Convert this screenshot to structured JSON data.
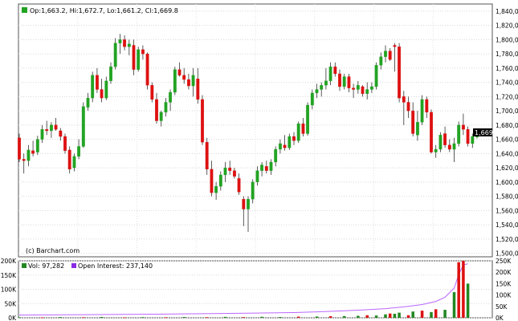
{
  "chart_data": [
    {
      "type": "candlestick",
      "legend": {
        "label": "Op:1,663.2, Hi:1,672.7, Lo:1,661.2, Cl:1,669.8",
        "color": "#22a322"
      },
      "credit": "(c) Barchart.com",
      "last_price_label": "1,669.8",
      "ylim": [
        1495,
        1850
      ],
      "yticks": [
        "1,840,00",
        "1,820,00",
        "1,800,00",
        "1,780,00",
        "1,760,00",
        "1,740,00",
        "1,720,00",
        "1,700,00",
        "1,680,00",
        "1,660,00",
        "1,640,00",
        "1,620,00",
        "1,600,00",
        "1,580,00",
        "1,560,00",
        "1,540,00",
        "1,520,00",
        "1,500,00"
      ],
      "ytick_values": [
        1840,
        1820,
        1800,
        1780,
        1760,
        1740,
        1720,
        1700,
        1680,
        1660,
        1640,
        1620,
        1600,
        1580,
        1560,
        1540,
        1520,
        1500
      ],
      "grid": true,
      "up_color": "#22a322",
      "down_color": "#dd1111",
      "candles": [
        [
          1662,
          1668,
          1628,
          1632
        ],
        [
          1632,
          1640,
          1612,
          1630
        ],
        [
          1630,
          1652,
          1622,
          1645
        ],
        [
          1644,
          1658,
          1636,
          1640
        ],
        [
          1642,
          1665,
          1638,
          1660
        ],
        [
          1660,
          1680,
          1655,
          1674
        ],
        [
          1674,
          1686,
          1666,
          1672
        ],
        [
          1672,
          1684,
          1662,
          1680
        ],
        [
          1680,
          1690,
          1672,
          1674
        ],
        [
          1672,
          1676,
          1658,
          1664
        ],
        [
          1664,
          1668,
          1640,
          1644
        ],
        [
          1645,
          1650,
          1612,
          1618
        ],
        [
          1620,
          1640,
          1615,
          1636
        ],
        [
          1636,
          1660,
          1632,
          1650
        ],
        [
          1650,
          1712,
          1648,
          1706
        ],
        [
          1705,
          1725,
          1700,
          1718
        ],
        [
          1718,
          1755,
          1712,
          1750
        ],
        [
          1750,
          1760,
          1725,
          1730
        ],
        [
          1730,
          1745,
          1712,
          1718
        ],
        [
          1718,
          1748,
          1715,
          1742
        ],
        [
          1742,
          1768,
          1738,
          1762
        ],
        [
          1762,
          1802,
          1758,
          1795
        ],
        [
          1795,
          1808,
          1780,
          1800
        ],
        [
          1800,
          1806,
          1785,
          1790
        ],
        [
          1790,
          1800,
          1778,
          1794
        ],
        [
          1792,
          1800,
          1750,
          1758
        ],
        [
          1758,
          1790,
          1755,
          1786
        ],
        [
          1786,
          1792,
          1772,
          1780
        ],
        [
          1780,
          1782,
          1730,
          1736
        ],
        [
          1736,
          1740,
          1712,
          1716
        ],
        [
          1716,
          1725,
          1682,
          1686
        ],
        [
          1686,
          1700,
          1678,
          1698
        ],
        [
          1698,
          1718,
          1692,
          1712
        ],
        [
          1712,
          1730,
          1700,
          1726
        ],
        [
          1726,
          1762,
          1722,
          1758
        ],
        [
          1758,
          1768,
          1748,
          1750
        ],
        [
          1750,
          1760,
          1738,
          1744
        ],
        [
          1744,
          1752,
          1730,
          1735
        ],
        [
          1735,
          1760,
          1720,
          1750
        ],
        [
          1745,
          1760,
          1710,
          1716
        ],
        [
          1716,
          1722,
          1652,
          1656
        ],
        [
          1656,
          1662,
          1610,
          1618
        ],
        [
          1618,
          1630,
          1580,
          1585
        ],
        [
          1585,
          1600,
          1575,
          1594
        ],
        [
          1594,
          1615,
          1588,
          1610
        ],
        [
          1610,
          1628,
          1600,
          1620
        ],
        [
          1620,
          1630,
          1610,
          1616
        ],
        [
          1616,
          1620,
          1605,
          1608
        ],
        [
          1605,
          1612,
          1582,
          1586
        ],
        [
          1576,
          1580,
          1538,
          1562
        ],
        [
          1562,
          1580,
          1530,
          1576
        ],
        [
          1576,
          1604,
          1570,
          1600
        ],
        [
          1600,
          1622,
          1595,
          1616
        ],
        [
          1616,
          1628,
          1608,
          1624
        ],
        [
          1622,
          1630,
          1612,
          1616
        ],
        [
          1616,
          1632,
          1610,
          1628
        ],
        [
          1628,
          1650,
          1622,
          1646
        ],
        [
          1646,
          1660,
          1640,
          1654
        ],
        [
          1652,
          1666,
          1644,
          1648
        ],
        [
          1648,
          1668,
          1645,
          1664
        ],
        [
          1664,
          1670,
          1652,
          1658
        ],
        [
          1658,
          1685,
          1655,
          1682
        ],
        [
          1682,
          1690,
          1664,
          1668
        ],
        [
          1668,
          1712,
          1665,
          1708
        ],
        [
          1708,
          1730,
          1702,
          1725
        ],
        [
          1725,
          1738,
          1718,
          1730
        ],
        [
          1730,
          1740,
          1720,
          1736
        ],
        [
          1736,
          1760,
          1730,
          1742
        ],
        [
          1742,
          1768,
          1736,
          1762
        ],
        [
          1762,
          1768,
          1748,
          1752
        ],
        [
          1752,
          1758,
          1728,
          1734
        ],
        [
          1734,
          1752,
          1730,
          1748
        ],
        [
          1748,
          1752,
          1726,
          1732
        ],
        [
          1732,
          1738,
          1718,
          1730
        ],
        [
          1730,
          1742,
          1724,
          1736
        ],
        [
          1734,
          1736,
          1720,
          1724
        ],
        [
          1724,
          1740,
          1716,
          1730
        ],
        [
          1730,
          1740,
          1725,
          1734
        ],
        [
          1734,
          1768,
          1730,
          1764
        ],
        [
          1764,
          1782,
          1758,
          1776
        ],
        [
          1776,
          1792,
          1768,
          1784
        ],
        [
          1784,
          1788,
          1770,
          1772
        ],
        [
          1792,
          1795,
          1755,
          1790
        ],
        [
          1790,
          1795,
          1712,
          1718
        ],
        [
          1720,
          1728,
          1680,
          1712
        ],
        [
          1712,
          1720,
          1690,
          1700
        ],
        [
          1700,
          1712,
          1664,
          1668
        ],
        [
          1666,
          1700,
          1658,
          1684
        ],
        [
          1684,
          1722,
          1680,
          1716
        ],
        [
          1716,
          1720,
          1690,
          1698
        ],
        [
          1698,
          1702,
          1640,
          1642
        ],
        [
          1642,
          1652,
          1634,
          1646
        ],
        [
          1646,
          1670,
          1642,
          1666
        ],
        [
          1668,
          1678,
          1648,
          1652
        ],
        [
          1652,
          1660,
          1642,
          1646
        ],
        [
          1646,
          1662,
          1628,
          1654
        ],
        [
          1654,
          1685,
          1650,
          1680
        ],
        [
          1680,
          1696,
          1666,
          1674
        ],
        [
          1674,
          1678,
          1650,
          1654
        ],
        [
          1654,
          1668,
          1648,
          1664
        ],
        [
          1663.2,
          1672.7,
          1661.2,
          1669.8
        ]
      ]
    },
    {
      "type": "bar+line",
      "legend_volume": {
        "label": "Vol: 97,282",
        "color": "#228822"
      },
      "legend_oi": {
        "label": "Open Interest: 237,140",
        "color": "#8a2be2"
      },
      "ylim": [
        0,
        200000
      ],
      "left_ticks": [
        "200K",
        "150K",
        "100K",
        "50K",
        "0K"
      ],
      "right_ticks": [
        "250K",
        "200K",
        "150K",
        "100K",
        "50K",
        "0K"
      ],
      "left_scale": [
        0,
        200000
      ],
      "right_scale": [
        0,
        250000
      ],
      "volume_up_color": "#228822",
      "volume_down_color": "#dd1111",
      "oi_color": "#bb66ff",
      "volume_bars": [
        [
          0,
          2000,
          1
        ],
        [
          5,
          1500,
          0
        ],
        [
          9,
          2500,
          1
        ],
        [
          14,
          1800,
          0
        ],
        [
          18,
          3000,
          1
        ],
        [
          23,
          1500,
          0
        ],
        [
          27,
          2200,
          1
        ],
        [
          32,
          1800,
          0
        ],
        [
          36,
          2600,
          1
        ],
        [
          41,
          2000,
          0
        ],
        [
          45,
          3200,
          1
        ],
        [
          49,
          2400,
          0
        ],
        [
          53,
          3500,
          1
        ],
        [
          57,
          2800,
          1
        ],
        [
          61,
          4000,
          0
        ],
        [
          65,
          4500,
          1
        ],
        [
          68,
          5500,
          0
        ],
        [
          71,
          6000,
          1
        ],
        [
          74,
          7000,
          1
        ],
        [
          76,
          9000,
          0
        ],
        [
          78,
          8000,
          1
        ],
        [
          80,
          12000,
          1
        ],
        [
          81,
          15000,
          0
        ],
        [
          82,
          14000,
          1
        ],
        [
          83,
          18000,
          1
        ],
        [
          85,
          9000,
          0
        ],
        [
          86,
          22000,
          1
        ],
        [
          88,
          25000,
          0
        ],
        [
          90,
          20000,
          1
        ],
        [
          91,
          30000,
          0
        ],
        [
          93,
          28000,
          1
        ],
        [
          95,
          90000,
          1
        ],
        [
          96,
          195000,
          0
        ],
        [
          97,
          210000,
          0
        ],
        [
          98,
          120000,
          1
        ]
      ],
      "open_interest": [
        [
          0,
          12000
        ],
        [
          10,
          13000
        ],
        [
          20,
          14500
        ],
        [
          30,
          16000
        ],
        [
          40,
          18000
        ],
        [
          50,
          20000
        ],
        [
          60,
          23000
        ],
        [
          65,
          26000
        ],
        [
          70,
          30000
        ],
        [
          75,
          34000
        ],
        [
          80,
          40000
        ],
        [
          84,
          48000
        ],
        [
          88,
          58000
        ],
        [
          91,
          72000
        ],
        [
          93,
          90000
        ],
        [
          95,
          130000
        ],
        [
          96,
          190000
        ],
        [
          97,
          232000
        ],
        [
          98,
          237140
        ]
      ]
    }
  ]
}
